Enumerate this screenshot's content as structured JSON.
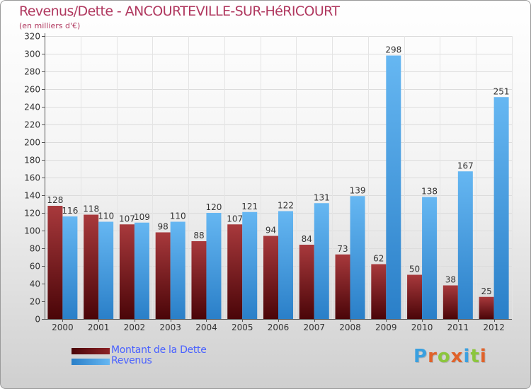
{
  "title": "Revenus/Dette - ANCOURTEVILLE-SUR-HéRICOURT",
  "subtitle": "(en milliers d'€)",
  "legend": {
    "debt_label": "Montant de la Dette",
    "revenue_label": "Revenus"
  },
  "logo": "Proxiti",
  "colors": {
    "debt": "#7a1216",
    "revenue": "#3d95dd",
    "title": "#b0385f",
    "legend_text": "#4a62ff"
  },
  "chart_data": {
    "type": "bar",
    "title": "Revenus/Dette - ANCOURTEVILLE-SUR-HéRICOURT",
    "subtitle": "(en milliers d'€)",
    "xlabel": "",
    "ylabel": "",
    "ylim": [
      0,
      320
    ],
    "yticks": [
      0,
      20,
      40,
      60,
      80,
      100,
      120,
      140,
      160,
      180,
      200,
      220,
      240,
      260,
      280,
      300,
      320
    ],
    "grid": true,
    "legend_position": "bottom-left",
    "categories": [
      "2000",
      "2001",
      "2002",
      "2003",
      "2004",
      "2005",
      "2006",
      "2007",
      "2008",
      "2009",
      "2010",
      "2011",
      "2012"
    ],
    "series": [
      {
        "name": "Montant de la Dette",
        "values": [
          128,
          118,
          107,
          98,
          88,
          107,
          94,
          84,
          73,
          62,
          50,
          38,
          25
        ]
      },
      {
        "name": "Revenus",
        "values": [
          116,
          110,
          109,
          110,
          120,
          121,
          122,
          131,
          139,
          298,
          138,
          167,
          251
        ]
      }
    ]
  }
}
